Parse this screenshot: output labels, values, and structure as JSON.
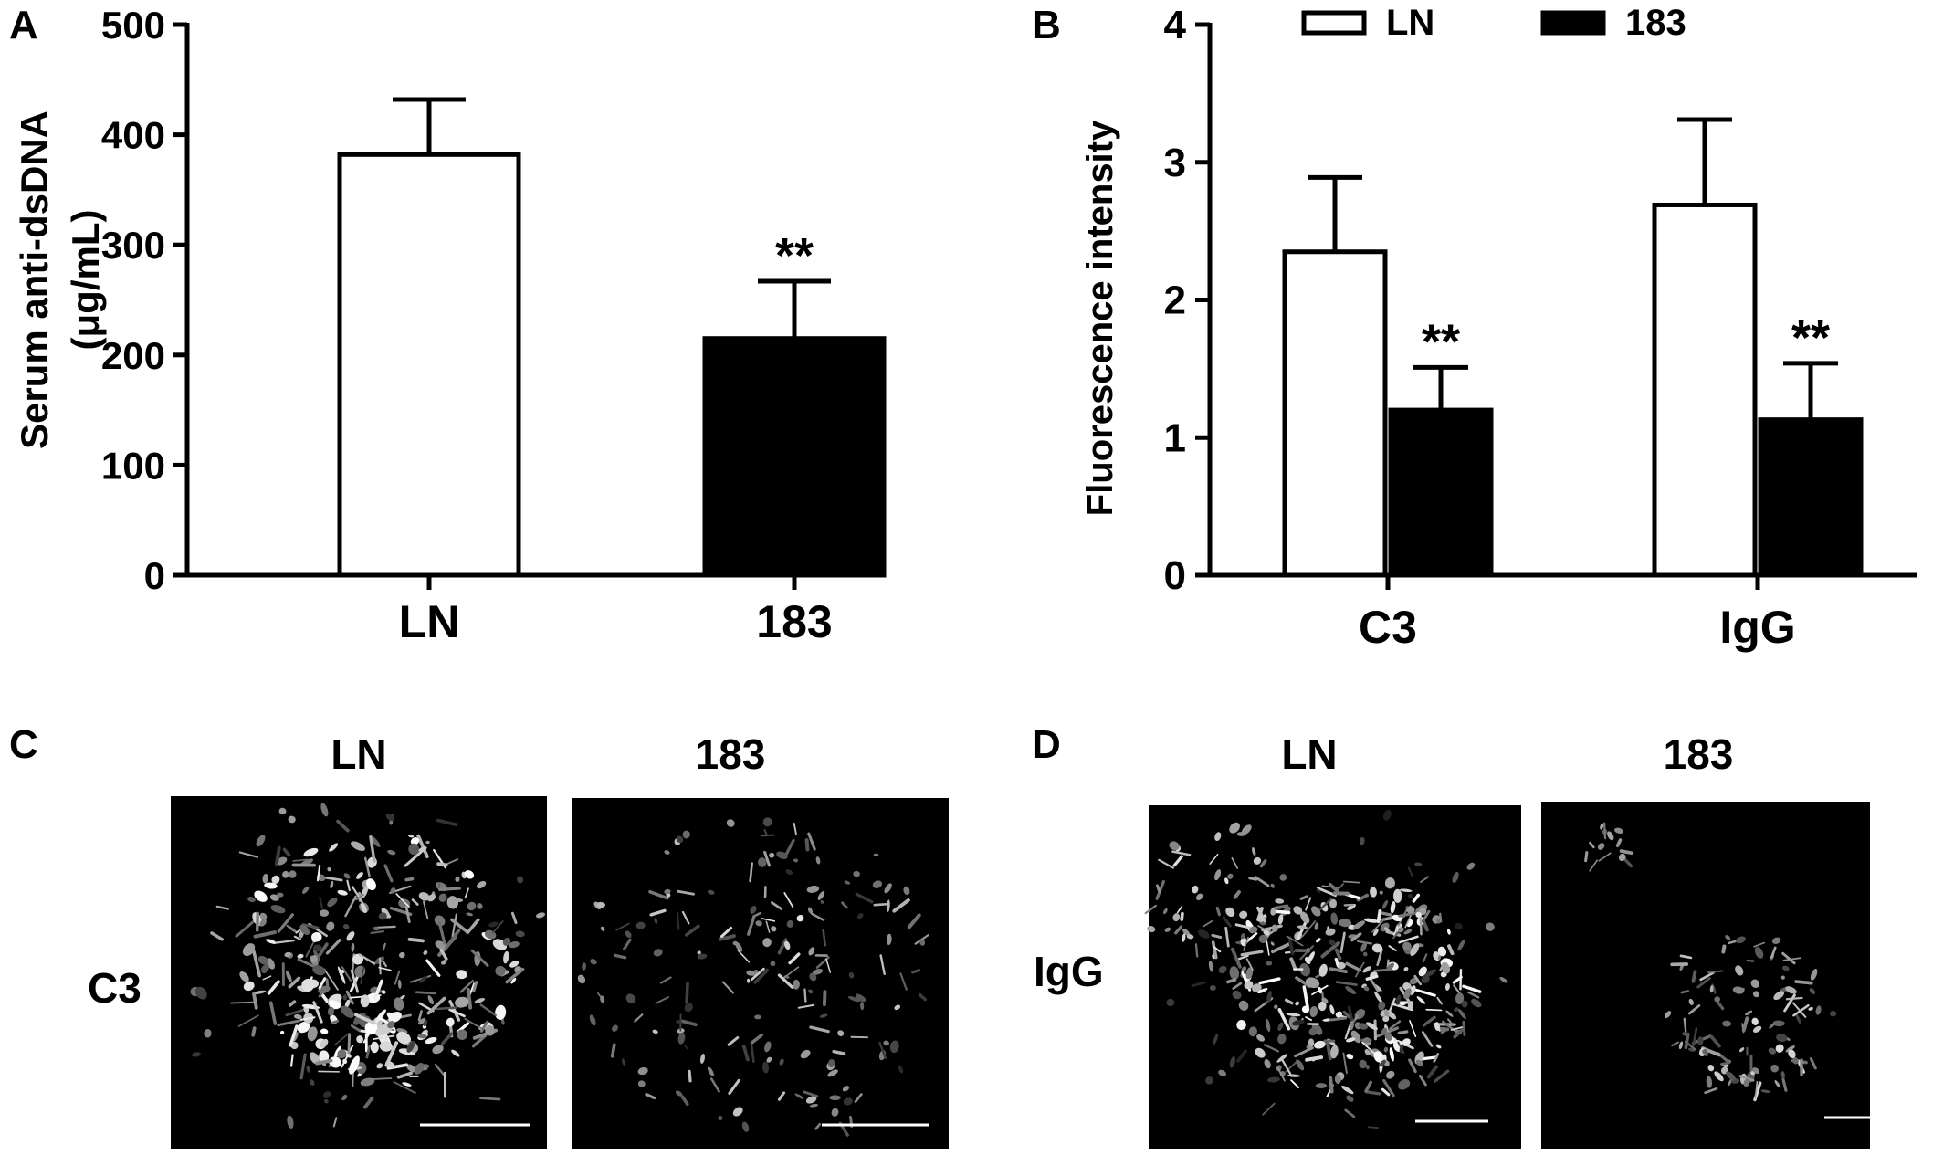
{
  "panels": {
    "A": {
      "letter": "A"
    },
    "B": {
      "letter": "B"
    },
    "C": {
      "letter": "C",
      "row_label": "C3",
      "col_labels": [
        "LN",
        "183"
      ]
    },
    "D": {
      "letter": "D",
      "row_label": "IgG",
      "col_labels": [
        "LN",
        "183"
      ]
    }
  },
  "chart_data": [
    {
      "panel": "A",
      "type": "bar",
      "categories": [
        "LN",
        "183"
      ],
      "values": [
        382,
        215
      ],
      "error_plus": [
        50,
        52
      ],
      "fill_colors": [
        "#ffffff",
        "#000000"
      ],
      "significance": [
        "",
        "**"
      ],
      "ylabel_lines": [
        "Serum anti-dsDNA",
        "(μg/mL)"
      ],
      "ylim": [
        0,
        500
      ],
      "yticks": [
        0,
        100,
        200,
        300,
        400,
        500
      ],
      "grid": false
    },
    {
      "panel": "B",
      "type": "bar",
      "categories": [
        "C3",
        "IgG"
      ],
      "series": [
        {
          "name": "LN",
          "color": "#ffffff",
          "values": [
            2.35,
            2.69
          ],
          "error_plus": [
            0.54,
            0.62
          ],
          "significance": [
            "",
            ""
          ]
        },
        {
          "name": "183",
          "color": "#000000",
          "values": [
            1.2,
            1.13
          ],
          "error_plus": [
            0.31,
            0.41
          ],
          "significance": [
            "**",
            "**"
          ]
        }
      ],
      "ylabel": "Fluorescence intensity",
      "ylim": [
        0,
        4
      ],
      "yticks": [
        0,
        1,
        2,
        3,
        4
      ],
      "legend_position": "top",
      "grid": false
    }
  ]
}
